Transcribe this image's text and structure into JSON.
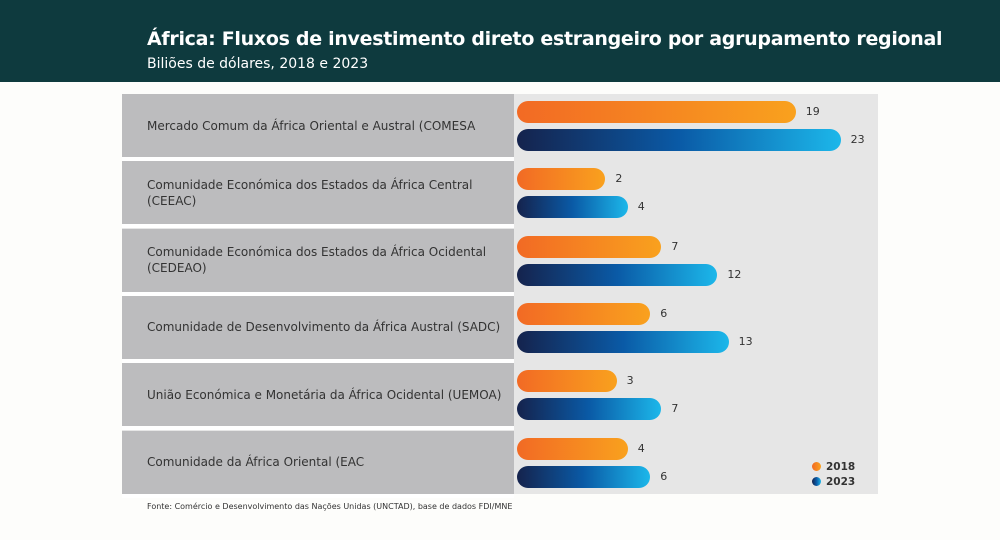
{
  "header": {
    "title": "África: Fluxos de investimento direto estrangeiro por agrupamento regional",
    "subtitle": "Biliões de dólares, 2018 e 2023"
  },
  "chart_data": {
    "type": "bar",
    "orientation": "horizontal",
    "categories": [
      "Mercado Comum da África Oriental e Austral (COMESA",
      "Comunidade Económica dos Estados da África Central (CEEAC)",
      "Comunidade Económica dos Estados da África Ocidental (CEDEAO)",
      "Comunidade de Desenvolvimento da África Austral (SADC)",
      "União Económica e Monetária da África Ocidental (UEMOA)",
      "Comunidade da África Oriental (EAC"
    ],
    "series": [
      {
        "name": "2018",
        "values": [
          19,
          2,
          7,
          6,
          3,
          4
        ],
        "color": "#f48a20"
      },
      {
        "name": "2023",
        "values": [
          23,
          4,
          12,
          13,
          7,
          6
        ],
        "color": "#0a5aa6"
      }
    ],
    "legend": "bottom-right"
  },
  "source": "Fonte: Comércio e Desenvolvimento das Nações Unidas (UNCTAD), base de dados FDI/MNE"
}
